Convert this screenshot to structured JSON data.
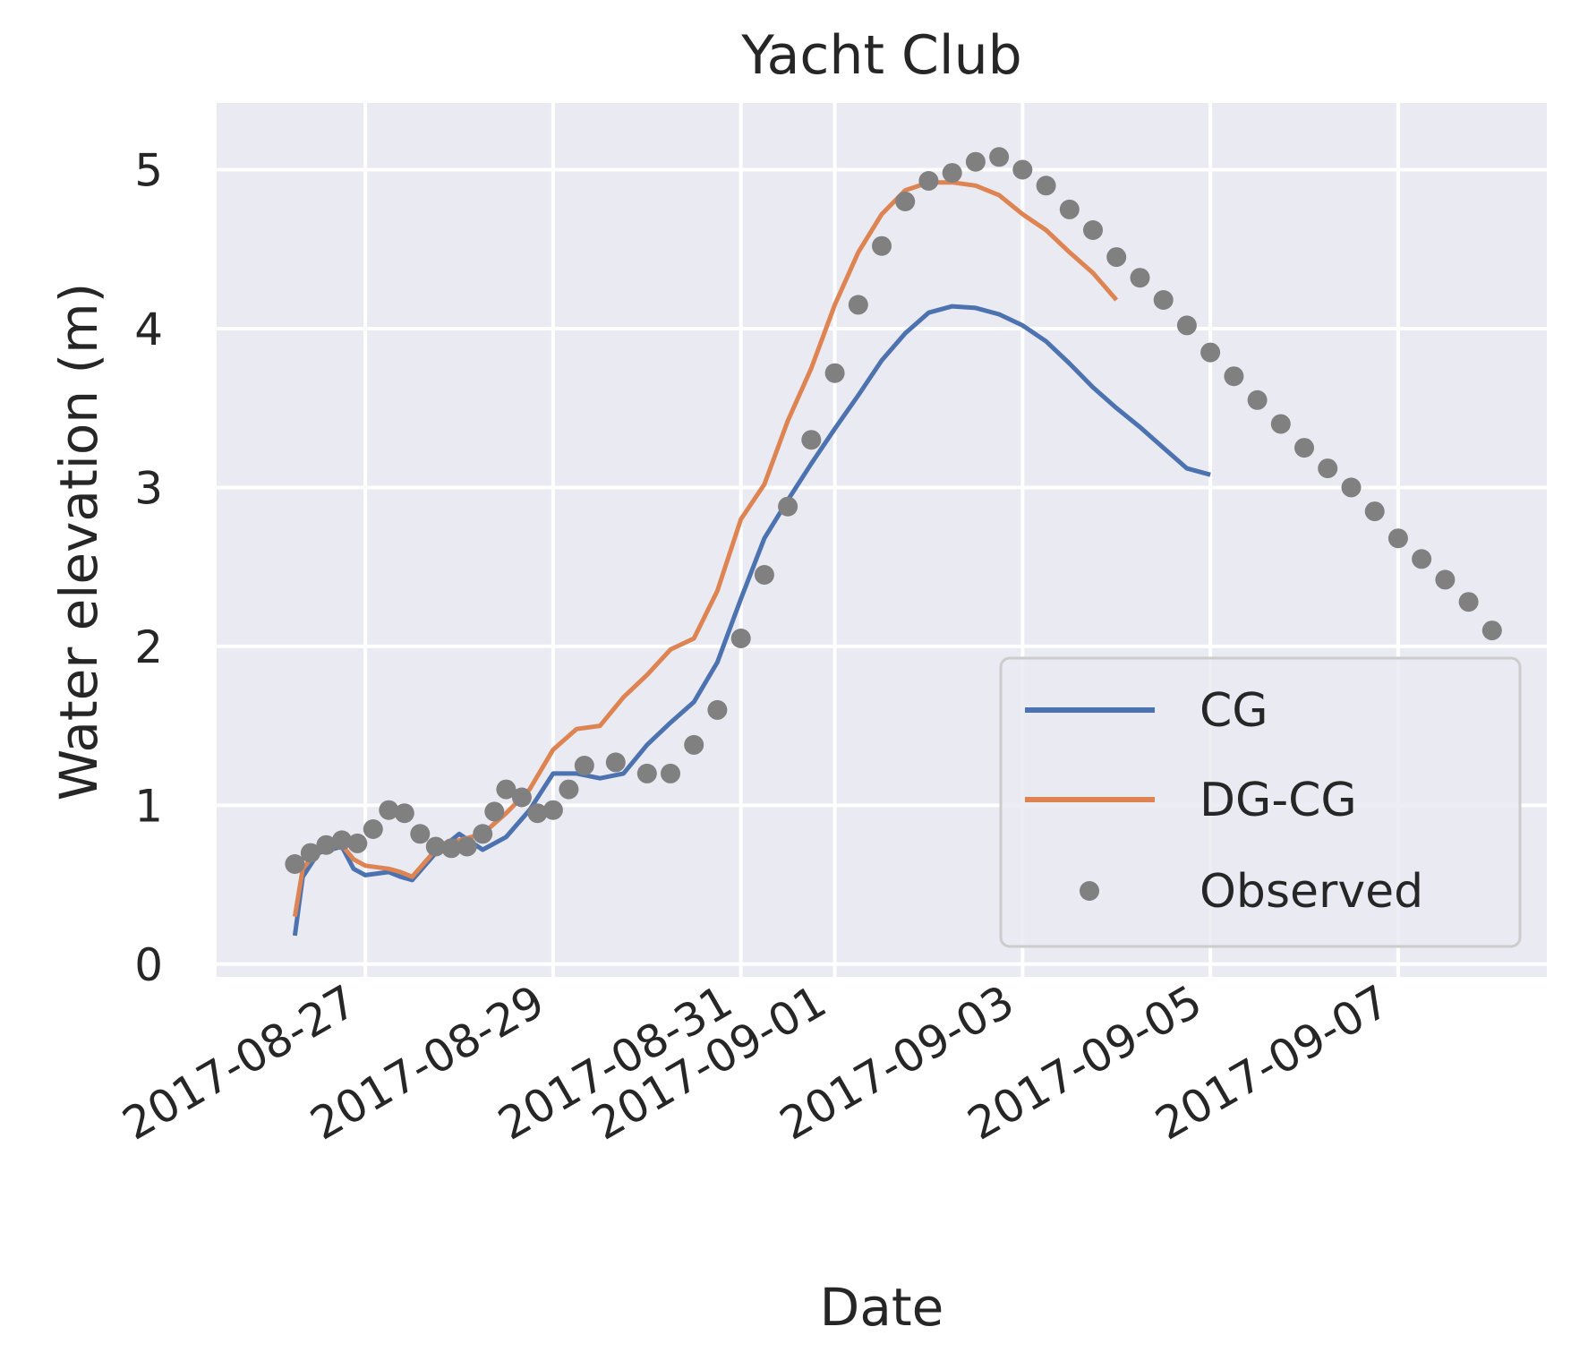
{
  "chart_data": {
    "type": "line",
    "title": "Yacht Club",
    "xlabel": "Date",
    "ylabel": "Water elevation (m)",
    "x_ticks": [
      "2017-08-27",
      "2017-08-29",
      "2017-08-31",
      "2017-09-01",
      "2017-09-03",
      "2017-09-05",
      "2017-09-07"
    ],
    "y_ticks": [
      "0",
      "1",
      "2",
      "3",
      "4",
      "5"
    ],
    "xlim": [
      "2017-08-25 10:00",
      "2017-09-08 14:00"
    ],
    "ylim": [
      -0.08,
      5.42
    ],
    "grid": true,
    "legend_position": "lower right",
    "colors": {
      "background": "#eaeaf2",
      "grid": "#ffffff",
      "CG": "#4c72b0",
      "DG-CG": "#dd8452",
      "Observed": "#808080"
    },
    "series": [
      {
        "name": "CG",
        "type": "line",
        "points": [
          [
            "2017-08-26 06:00",
            0.18
          ],
          [
            "2017-08-26 08:00",
            0.55
          ],
          [
            "2017-08-26 12:00",
            0.7
          ],
          [
            "2017-08-26 18:00",
            0.74
          ],
          [
            "2017-08-26 21:00",
            0.6
          ],
          [
            "2017-08-27 00:00",
            0.56
          ],
          [
            "2017-08-27 06:00",
            0.58
          ],
          [
            "2017-08-27 09:00",
            0.55
          ],
          [
            "2017-08-27 12:00",
            0.53
          ],
          [
            "2017-08-27 18:00",
            0.7
          ],
          [
            "2017-08-28 00:00",
            0.82
          ],
          [
            "2017-08-28 06:00",
            0.72
          ],
          [
            "2017-08-28 12:00",
            0.8
          ],
          [
            "2017-08-28 18:00",
            0.97
          ],
          [
            "2017-08-29 00:00",
            1.2
          ],
          [
            "2017-08-29 06:00",
            1.2
          ],
          [
            "2017-08-29 12:00",
            1.17
          ],
          [
            "2017-08-29 18:00",
            1.2
          ],
          [
            "2017-08-30 00:00",
            1.38
          ],
          [
            "2017-08-30 06:00",
            1.52
          ],
          [
            "2017-08-30 12:00",
            1.65
          ],
          [
            "2017-08-30 18:00",
            1.9
          ],
          [
            "2017-08-31 00:00",
            2.3
          ],
          [
            "2017-08-31 06:00",
            2.68
          ],
          [
            "2017-08-31 12:00",
            2.92
          ],
          [
            "2017-08-31 18:00",
            3.15
          ],
          [
            "2017-09-01 00:00",
            3.37
          ],
          [
            "2017-09-01 06:00",
            3.58
          ],
          [
            "2017-09-01 12:00",
            3.8
          ],
          [
            "2017-09-01 18:00",
            3.97
          ],
          [
            "2017-09-02 00:00",
            4.1
          ],
          [
            "2017-09-02 06:00",
            4.14
          ],
          [
            "2017-09-02 12:00",
            4.13
          ],
          [
            "2017-09-02 18:00",
            4.09
          ],
          [
            "2017-09-03 00:00",
            4.02
          ],
          [
            "2017-09-03 06:00",
            3.92
          ],
          [
            "2017-09-03 12:00",
            3.78
          ],
          [
            "2017-09-03 18:00",
            3.63
          ],
          [
            "2017-09-04 00:00",
            3.5
          ],
          [
            "2017-09-04 06:00",
            3.38
          ],
          [
            "2017-09-04 12:00",
            3.25
          ],
          [
            "2017-09-04 18:00",
            3.12
          ],
          [
            "2017-09-05 00:00",
            3.08
          ]
        ]
      },
      {
        "name": "DG-CG",
        "type": "line",
        "points": [
          [
            "2017-08-26 06:00",
            0.3
          ],
          [
            "2017-08-26 08:00",
            0.6
          ],
          [
            "2017-08-26 12:00",
            0.72
          ],
          [
            "2017-08-26 18:00",
            0.75
          ],
          [
            "2017-08-26 21:00",
            0.66
          ],
          [
            "2017-08-27 00:00",
            0.62
          ],
          [
            "2017-08-27 06:00",
            0.6
          ],
          [
            "2017-08-27 09:00",
            0.58
          ],
          [
            "2017-08-27 12:00",
            0.55
          ],
          [
            "2017-08-27 18:00",
            0.72
          ],
          [
            "2017-08-28 00:00",
            0.78
          ],
          [
            "2017-08-28 06:00",
            0.82
          ],
          [
            "2017-08-28 12:00",
            0.95
          ],
          [
            "2017-08-28 18:00",
            1.1
          ],
          [
            "2017-08-29 00:00",
            1.35
          ],
          [
            "2017-08-29 06:00",
            1.48
          ],
          [
            "2017-08-29 12:00",
            1.5
          ],
          [
            "2017-08-29 18:00",
            1.68
          ],
          [
            "2017-08-30 00:00",
            1.82
          ],
          [
            "2017-08-30 06:00",
            1.98
          ],
          [
            "2017-08-30 12:00",
            2.05
          ],
          [
            "2017-08-30 18:00",
            2.35
          ],
          [
            "2017-08-31 00:00",
            2.8
          ],
          [
            "2017-08-31 06:00",
            3.02
          ],
          [
            "2017-08-31 12:00",
            3.42
          ],
          [
            "2017-08-31 18:00",
            3.75
          ],
          [
            "2017-09-01 00:00",
            4.15
          ],
          [
            "2017-09-01 06:00",
            4.48
          ],
          [
            "2017-09-01 12:00",
            4.72
          ],
          [
            "2017-09-01 18:00",
            4.87
          ],
          [
            "2017-09-02 00:00",
            4.92
          ],
          [
            "2017-09-02 06:00",
            4.92
          ],
          [
            "2017-09-02 12:00",
            4.9
          ],
          [
            "2017-09-02 18:00",
            4.84
          ],
          [
            "2017-09-03 00:00",
            4.72
          ],
          [
            "2017-09-03 06:00",
            4.62
          ],
          [
            "2017-09-03 12:00",
            4.48
          ],
          [
            "2017-09-03 18:00",
            4.35
          ],
          [
            "2017-09-04 00:00",
            4.18
          ]
        ]
      },
      {
        "name": "Observed",
        "type": "scatter",
        "points": [
          [
            "2017-08-26 06:00",
            0.63
          ],
          [
            "2017-08-26 10:00",
            0.7
          ],
          [
            "2017-08-26 14:00",
            0.75
          ],
          [
            "2017-08-26 18:00",
            0.78
          ],
          [
            "2017-08-26 22:00",
            0.76
          ],
          [
            "2017-08-27 02:00",
            0.85
          ],
          [
            "2017-08-27 06:00",
            0.97
          ],
          [
            "2017-08-27 10:00",
            0.95
          ],
          [
            "2017-08-27 14:00",
            0.82
          ],
          [
            "2017-08-27 18:00",
            0.74
          ],
          [
            "2017-08-27 22:00",
            0.73
          ],
          [
            "2017-08-28 02:00",
            0.74
          ],
          [
            "2017-08-28 06:00",
            0.82
          ],
          [
            "2017-08-28 09:00",
            0.96
          ],
          [
            "2017-08-28 12:00",
            1.1
          ],
          [
            "2017-08-28 16:00",
            1.05
          ],
          [
            "2017-08-28 20:00",
            0.95
          ],
          [
            "2017-08-29 00:00",
            0.97
          ],
          [
            "2017-08-29 04:00",
            1.1
          ],
          [
            "2017-08-29 08:00",
            1.25
          ],
          [
            "2017-08-29 16:00",
            1.27
          ],
          [
            "2017-08-30 00:00",
            1.2
          ],
          [
            "2017-08-30 06:00",
            1.2
          ],
          [
            "2017-08-30 12:00",
            1.38
          ],
          [
            "2017-08-30 18:00",
            1.6
          ],
          [
            "2017-08-31 00:00",
            2.05
          ],
          [
            "2017-08-31 06:00",
            2.45
          ],
          [
            "2017-08-31 12:00",
            2.88
          ],
          [
            "2017-08-31 18:00",
            3.3
          ],
          [
            "2017-09-01 00:00",
            3.72
          ],
          [
            "2017-09-01 06:00",
            4.15
          ],
          [
            "2017-09-01 12:00",
            4.52
          ],
          [
            "2017-09-01 18:00",
            4.8
          ],
          [
            "2017-09-02 00:00",
            4.93
          ],
          [
            "2017-09-02 06:00",
            4.98
          ],
          [
            "2017-09-02 12:00",
            5.05
          ],
          [
            "2017-09-02 18:00",
            5.08
          ],
          [
            "2017-09-03 00:00",
            5.0
          ],
          [
            "2017-09-03 06:00",
            4.9
          ],
          [
            "2017-09-03 12:00",
            4.75
          ],
          [
            "2017-09-03 18:00",
            4.62
          ],
          [
            "2017-09-04 00:00",
            4.45
          ],
          [
            "2017-09-04 06:00",
            4.32
          ],
          [
            "2017-09-04 12:00",
            4.18
          ],
          [
            "2017-09-04 18:00",
            4.02
          ],
          [
            "2017-09-05 00:00",
            3.85
          ],
          [
            "2017-09-05 06:00",
            3.7
          ],
          [
            "2017-09-05 12:00",
            3.55
          ],
          [
            "2017-09-05 18:00",
            3.4
          ],
          [
            "2017-09-06 00:00",
            3.25
          ],
          [
            "2017-09-06 06:00",
            3.12
          ],
          [
            "2017-09-06 12:00",
            3.0
          ],
          [
            "2017-09-06 18:00",
            2.85
          ],
          [
            "2017-09-07 00:00",
            2.68
          ],
          [
            "2017-09-07 06:00",
            2.55
          ],
          [
            "2017-09-07 12:00",
            2.42
          ],
          [
            "2017-09-07 18:00",
            2.28
          ],
          [
            "2017-09-08 00:00",
            2.1
          ]
        ]
      }
    ]
  }
}
